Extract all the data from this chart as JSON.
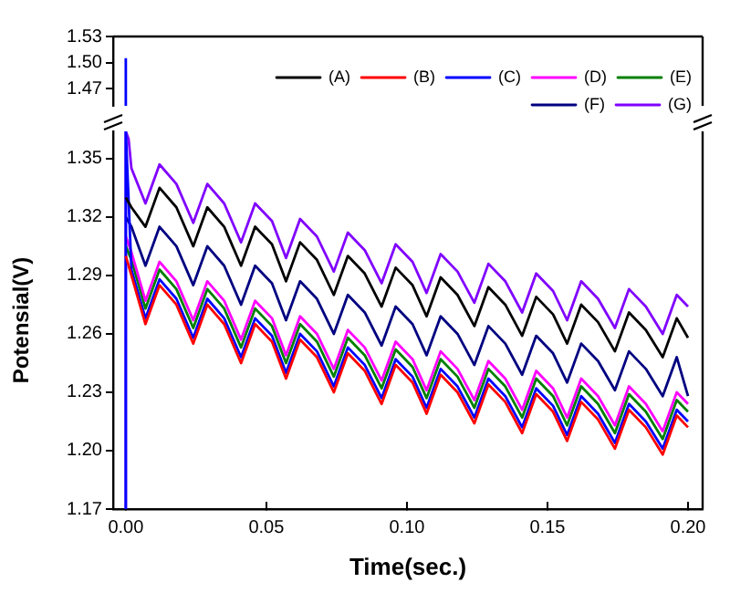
{
  "chart_data": [
    {
      "type": "line",
      "xlim": [
        -0.0045,
        0.2052
      ],
      "ylim": [
        1.45,
        1.53
      ],
      "yticks": [
        {
          "value": 1.47,
          "label": "1.47"
        },
        {
          "value": 1.5,
          "label": "1.50"
        },
        {
          "value": 1.53,
          "label": "1.53"
        }
      ],
      "tick_labels": "y",
      "legend": false,
      "marker": "none",
      "series": [
        {
          "color": "#0000ff",
          "x": [
            0,
            0
          ],
          "values": [
            1.45,
            1.505
          ]
        }
      ]
    },
    {
      "type": "line",
      "xlabel": "Time(sec.)",
      "ylabel": "Potensial(V)",
      "xlim": [
        -0.0045,
        0.2052
      ],
      "ylim": [
        1.17,
        1.364
      ],
      "legend": "top right",
      "marker": "none",
      "xticks": [
        {
          "value": 0,
          "label": "0.00"
        },
        {
          "value": 0.05,
          "label": "0.05"
        },
        {
          "value": 0.1,
          "label": "0.10"
        },
        {
          "value": 0.15,
          "label": "0.15"
        },
        {
          "value": 0.2,
          "label": "0.20"
        }
      ],
      "yticks": [
        {
          "value": 1.17,
          "label": "1.17"
        },
        {
          "value": 1.2,
          "label": "1.20"
        },
        {
          "value": 1.23,
          "label": "1.23"
        },
        {
          "value": 1.26,
          "label": "1.26"
        },
        {
          "value": 1.29,
          "label": "1.29"
        },
        {
          "value": 1.32,
          "label": "1.32"
        },
        {
          "value": 1.35,
          "label": "1.35"
        }
      ],
      "x": [
        0,
        0.002,
        0.007,
        0.012,
        0.018,
        0.024,
        0.029,
        0.035,
        0.041,
        0.046,
        0.052,
        0.057,
        0.062,
        0.068,
        0.074,
        0.079,
        0.085,
        0.091,
        0.096,
        0.102,
        0.107,
        0.112,
        0.118,
        0.124,
        0.129,
        0.135,
        0.141,
        0.146,
        0.152,
        0.157,
        0.162,
        0.168,
        0.174,
        0.179,
        0.185,
        0.191,
        0.196,
        0.2
      ],
      "series": [
        {
          "name": "(A)",
          "color": "#000000",
          "values": [
            1.33,
            1.325,
            1.315,
            1.335,
            1.325,
            1.305,
            1.325,
            1.315,
            1.295,
            1.315,
            1.306,
            1.287,
            1.307,
            1.298,
            1.28,
            1.3,
            1.291,
            1.274,
            1.294,
            1.285,
            1.269,
            1.289,
            1.28,
            1.264,
            1.284,
            1.275,
            1.259,
            1.279,
            1.27,
            1.255,
            1.275,
            1.266,
            1.251,
            1.271,
            1.262,
            1.248,
            1.268,
            1.258
          ]
        },
        {
          "name": "(B)",
          "color": "#ff0000",
          "values": [
            1.3,
            1.29,
            1.265,
            1.285,
            1.275,
            1.255,
            1.275,
            1.265,
            1.245,
            1.265,
            1.256,
            1.237,
            1.257,
            1.248,
            1.23,
            1.25,
            1.241,
            1.224,
            1.244,
            1.235,
            1.219,
            1.239,
            1.23,
            1.214,
            1.234,
            1.225,
            1.209,
            1.229,
            1.22,
            1.205,
            1.225,
            1.216,
            1.201,
            1.221,
            1.212,
            1.198,
            1.218,
            1.212
          ]
        },
        {
          "name": "(C)",
          "color": "#0000ff",
          "x": [
            0,
            0,
            0.002,
            0.007,
            0.012,
            0.018,
            0.024,
            0.029,
            0.035,
            0.041,
            0.046,
            0.052,
            0.057,
            0.062,
            0.068,
            0.074,
            0.079,
            0.085,
            0.091,
            0.096,
            0.102,
            0.107,
            0.112,
            0.118,
            0.124,
            0.129,
            0.135,
            0.141,
            0.146,
            0.152,
            0.157,
            0.162,
            0.168,
            0.174,
            0.179,
            0.185,
            0.191,
            0.196,
            0.2
          ],
          "values": [
            1.17,
            1.364,
            1.293,
            1.268,
            1.288,
            1.278,
            1.258,
            1.278,
            1.268,
            1.248,
            1.268,
            1.259,
            1.24,
            1.26,
            1.251,
            1.233,
            1.253,
            1.244,
            1.227,
            1.247,
            1.238,
            1.222,
            1.242,
            1.233,
            1.217,
            1.237,
            1.228,
            1.212,
            1.232,
            1.223,
            1.208,
            1.228,
            1.219,
            1.204,
            1.224,
            1.215,
            1.201,
            1.221,
            1.215
          ]
        },
        {
          "name": "(D)",
          "color": "#ff00ff",
          "values": [
            1.31,
            1.302,
            1.277,
            1.297,
            1.287,
            1.267,
            1.287,
            1.277,
            1.257,
            1.277,
            1.268,
            1.249,
            1.269,
            1.26,
            1.242,
            1.262,
            1.253,
            1.236,
            1.256,
            1.247,
            1.231,
            1.251,
            1.242,
            1.226,
            1.246,
            1.237,
            1.221,
            1.241,
            1.232,
            1.217,
            1.237,
            1.228,
            1.213,
            1.233,
            1.224,
            1.21,
            1.23,
            1.224
          ]
        },
        {
          "name": "(E)",
          "color": "#008000",
          "values": [
            1.305,
            1.298,
            1.273,
            1.293,
            1.283,
            1.263,
            1.283,
            1.273,
            1.253,
            1.273,
            1.264,
            1.245,
            1.265,
            1.256,
            1.238,
            1.258,
            1.249,
            1.232,
            1.252,
            1.243,
            1.227,
            1.247,
            1.238,
            1.222,
            1.242,
            1.233,
            1.217,
            1.237,
            1.228,
            1.213,
            1.233,
            1.224,
            1.209,
            1.229,
            1.22,
            1.206,
            1.226,
            1.22
          ]
        },
        {
          "name": "(F)",
          "color": "#000080",
          "values": [
            1.32,
            1.315,
            1.295,
            1.315,
            1.305,
            1.285,
            1.305,
            1.295,
            1.275,
            1.295,
            1.286,
            1.267,
            1.287,
            1.278,
            1.26,
            1.28,
            1.271,
            1.254,
            1.274,
            1.265,
            1.249,
            1.269,
            1.26,
            1.244,
            1.264,
            1.255,
            1.239,
            1.259,
            1.25,
            1.235,
            1.255,
            1.246,
            1.231,
            1.251,
            1.242,
            1.228,
            1.248,
            1.228
          ]
        },
        {
          "name": "(G)",
          "color": "#8000ff",
          "x": [
            0,
            0,
            0.001,
            0.002,
            0.007,
            0.012,
            0.018,
            0.024,
            0.029,
            0.035,
            0.041,
            0.046,
            0.052,
            0.057,
            0.062,
            0.068,
            0.074,
            0.079,
            0.085,
            0.091,
            0.096,
            0.102,
            0.107,
            0.112,
            0.118,
            0.124,
            0.129,
            0.135,
            0.141,
            0.146,
            0.152,
            0.157,
            0.162,
            0.168,
            0.174,
            0.179,
            0.185,
            0.191,
            0.196,
            0.2
          ],
          "values": [
            1.17,
            1.364,
            1.36,
            1.345,
            1.327,
            1.347,
            1.337,
            1.317,
            1.337,
            1.327,
            1.307,
            1.327,
            1.318,
            1.299,
            1.319,
            1.31,
            1.292,
            1.312,
            1.303,
            1.286,
            1.306,
            1.297,
            1.281,
            1.301,
            1.292,
            1.276,
            1.296,
            1.287,
            1.271,
            1.291,
            1.282,
            1.267,
            1.287,
            1.278,
            1.263,
            1.283,
            1.274,
            1.26,
            1.28,
            1.274
          ]
        }
      ]
    }
  ]
}
